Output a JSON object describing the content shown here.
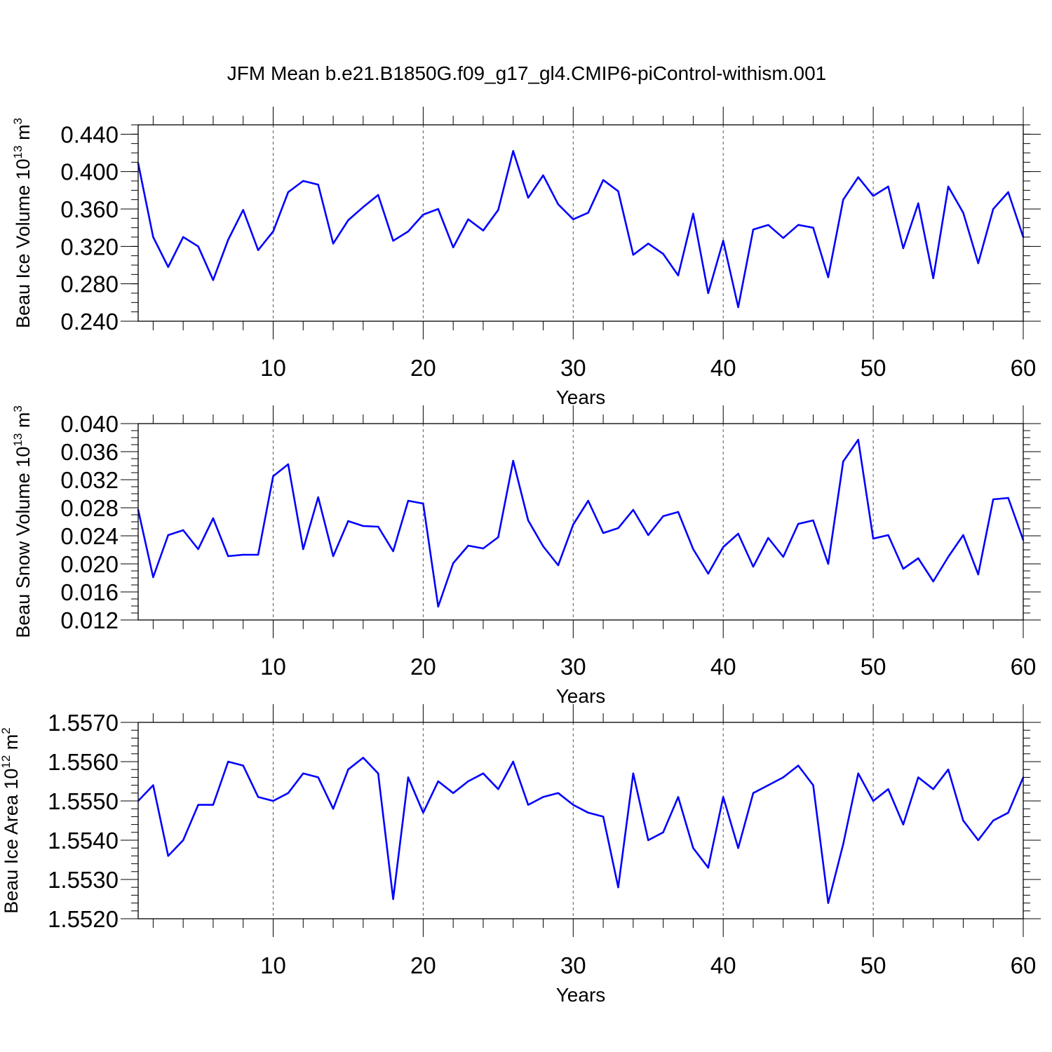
{
  "title": "JFM Mean b.e21.B1850G.f09_g17_gl4.CMIP6-piControl-withism.001",
  "chart_data": [
    {
      "type": "line",
      "ylabel_main": "Beau Ice Volume 10",
      "ylabel_exp": "13",
      "ylabel_unit": " m",
      "ylabel_unit_exp": "3",
      "xlabel": "Years",
      "xlim": [
        1,
        60
      ],
      "ylim": [
        0.24,
        0.45
      ],
      "yticks": [
        0.24,
        0.28,
        0.32,
        0.36,
        0.4,
        0.44
      ],
      "yticklabels": [
        "0.240",
        "0.280",
        "0.320",
        "0.360",
        "0.400",
        "0.440"
      ],
      "yminor_step": 0.01,
      "xticks": [
        10,
        20,
        30,
        40,
        50,
        60
      ],
      "xticklabels": [
        "10",
        "20",
        "30",
        "40",
        "50",
        "60"
      ],
      "grid_x": [
        10,
        20,
        30,
        40,
        50
      ],
      "line_color": "#0000ff",
      "x": [
        1,
        2,
        3,
        4,
        5,
        6,
        7,
        8,
        9,
        10,
        11,
        12,
        13,
        14,
        15,
        16,
        17,
        18,
        19,
        20,
        21,
        22,
        23,
        24,
        25,
        26,
        27,
        28,
        29,
        30,
        31,
        32,
        33,
        34,
        35,
        36,
        37,
        38,
        39,
        40,
        41,
        42,
        43,
        44,
        45,
        46,
        47,
        48,
        49,
        50,
        51,
        52,
        53,
        54,
        55,
        56,
        57,
        58,
        59,
        60
      ],
      "values": [
        0.409,
        0.33,
        0.298,
        0.33,
        0.32,
        0.284,
        0.327,
        0.359,
        0.316,
        0.336,
        0.378,
        0.39,
        0.386,
        0.323,
        0.348,
        0.362,
        0.375,
        0.326,
        0.336,
        0.354,
        0.36,
        0.319,
        0.349,
        0.337,
        0.359,
        0.422,
        0.372,
        0.396,
        0.365,
        0.349,
        0.356,
        0.391,
        0.379,
        0.311,
        0.323,
        0.312,
        0.289,
        0.355,
        0.27,
        0.326,
        0.255,
        0.338,
        0.343,
        0.329,
        0.343,
        0.34,
        0.287,
        0.37,
        0.394,
        0.374,
        0.384,
        0.318,
        0.366,
        0.286,
        0.384,
        0.356,
        0.302,
        0.36,
        0.378,
        0.33
      ]
    },
    {
      "type": "line",
      "ylabel_main": "Beau Snow Volume 10",
      "ylabel_exp": "13",
      "ylabel_unit": " m",
      "ylabel_unit_exp": "3",
      "xlabel": "Years",
      "xlim": [
        1,
        60
      ],
      "ylim": [
        0.012,
        0.04
      ],
      "yticks": [
        0.012,
        0.016,
        0.02,
        0.024,
        0.028,
        0.032,
        0.036,
        0.04
      ],
      "yticklabels": [
        "0.012",
        "0.016",
        "0.020",
        "0.024",
        "0.028",
        "0.032",
        "0.036",
        "0.040"
      ],
      "yminor_step": 0.001,
      "xticks": [
        10,
        20,
        30,
        40,
        50,
        60
      ],
      "xticklabels": [
        "10",
        "20",
        "30",
        "40",
        "50",
        "60"
      ],
      "grid_x": [
        10,
        20,
        30,
        40,
        50
      ],
      "line_color": "#0000ff",
      "x": [
        1,
        2,
        3,
        4,
        5,
        6,
        7,
        8,
        9,
        10,
        11,
        12,
        13,
        14,
        15,
        16,
        17,
        18,
        19,
        20,
        21,
        22,
        23,
        24,
        25,
        26,
        27,
        28,
        29,
        30,
        31,
        32,
        33,
        34,
        35,
        36,
        37,
        38,
        39,
        40,
        41,
        42,
        43,
        44,
        45,
        46,
        47,
        48,
        49,
        50,
        51,
        52,
        53,
        54,
        55,
        56,
        57,
        58,
        59,
        60
      ],
      "values": [
        0.0277,
        0.0181,
        0.0241,
        0.0248,
        0.0221,
        0.0265,
        0.0211,
        0.0213,
        0.0213,
        0.0325,
        0.0342,
        0.0221,
        0.0295,
        0.0211,
        0.0261,
        0.0254,
        0.0253,
        0.0218,
        0.029,
        0.0286,
        0.0139,
        0.0201,
        0.0226,
        0.0222,
        0.0238,
        0.0347,
        0.0262,
        0.0225,
        0.0198,
        0.0256,
        0.029,
        0.0244,
        0.0251,
        0.0277,
        0.0241,
        0.0268,
        0.0274,
        0.0221,
        0.0186,
        0.0224,
        0.0243,
        0.0196,
        0.0237,
        0.021,
        0.0257,
        0.0262,
        0.02,
        0.0346,
        0.0377,
        0.0236,
        0.0241,
        0.0193,
        0.0208,
        0.0175,
        0.021,
        0.0241,
        0.0185,
        0.0292,
        0.0294,
        0.0234
      ]
    },
    {
      "type": "line",
      "ylabel_main": "Beau Ice Area 10",
      "ylabel_exp": "12",
      "ylabel_unit": " m",
      "ylabel_unit_exp": "2",
      "xlabel": "Years",
      "xlim": [
        1,
        60
      ],
      "ylim": [
        1.552,
        1.557
      ],
      "yticks": [
        1.552,
        1.553,
        1.554,
        1.555,
        1.556,
        1.557
      ],
      "yticklabels": [
        "1.5520",
        "1.5530",
        "1.5540",
        "1.5550",
        "1.5560",
        "1.5570"
      ],
      "yminor_step": 0.0002,
      "xticks": [
        10,
        20,
        30,
        40,
        50,
        60
      ],
      "xticklabels": [
        "10",
        "20",
        "30",
        "40",
        "50",
        "60"
      ],
      "grid_x": [
        10,
        20,
        30,
        40,
        50
      ],
      "line_color": "#0000ff",
      "x": [
        1,
        2,
        3,
        4,
        5,
        6,
        7,
        8,
        9,
        10,
        11,
        12,
        13,
        14,
        15,
        16,
        17,
        18,
        19,
        20,
        21,
        22,
        23,
        24,
        25,
        26,
        27,
        28,
        29,
        30,
        31,
        32,
        33,
        34,
        35,
        36,
        37,
        38,
        39,
        40,
        41,
        42,
        43,
        44,
        45,
        46,
        47,
        48,
        49,
        50,
        51,
        52,
        53,
        54,
        55,
        56,
        57,
        58,
        59,
        60
      ],
      "values": [
        1.555,
        1.5554,
        1.5536,
        1.554,
        1.5549,
        1.5549,
        1.556,
        1.5559,
        1.5551,
        1.555,
        1.5552,
        1.5557,
        1.5556,
        1.5548,
        1.5558,
        1.5561,
        1.5557,
        1.5525,
        1.5556,
        1.5547,
        1.5555,
        1.5552,
        1.5555,
        1.5557,
        1.5553,
        1.556,
        1.5549,
        1.5551,
        1.5552,
        1.5549,
        1.5547,
        1.5546,
        1.5528,
        1.5557,
        1.554,
        1.5542,
        1.5551,
        1.5538,
        1.5533,
        1.5551,
        1.5538,
        1.5552,
        1.5554,
        1.5556,
        1.5559,
        1.5554,
        1.5524,
        1.5539,
        1.5557,
        1.555,
        1.5553,
        1.5544,
        1.5556,
        1.5553,
        1.5558,
        1.5545,
        1.554,
        1.5545,
        1.5547,
        1.5556
      ]
    }
  ]
}
